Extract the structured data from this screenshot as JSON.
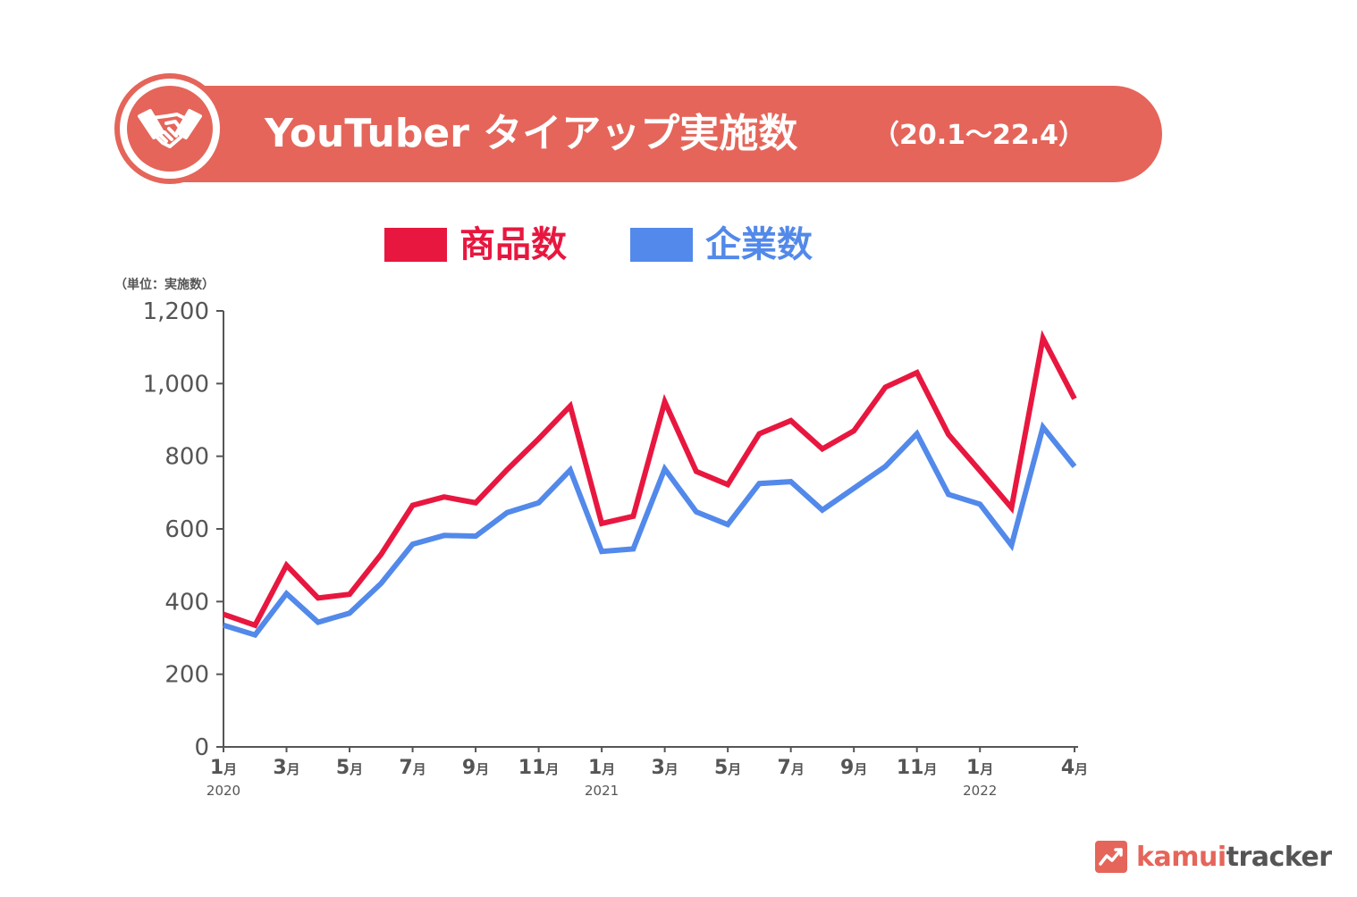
{
  "header": {
    "title": "YouTuber タイアップ実施数",
    "range": "（20.1～22.4）",
    "icon": "handshake-icon"
  },
  "legend": [
    {
      "label": "商品数",
      "color": "#e8173f"
    },
    {
      "label": "企業数",
      "color": "#5289ea"
    }
  ],
  "unit_label": "（単位：実施数）",
  "brand": {
    "prefix": "kamui",
    "suffix": "tracker",
    "prefix_color": "#e5655a",
    "suffix_color": "#555555",
    "icon": "trend-chart-icon"
  },
  "chart_data": {
    "type": "line",
    "title": "YouTuber タイアップ実施数",
    "xlabel": "",
    "ylabel": "（単位：実施数）",
    "ylim": [
      0,
      1200
    ],
    "yticks": [
      "0",
      "200",
      "400",
      "600",
      "800",
      "1,000",
      "1,200"
    ],
    "ytick_values": [
      0,
      200,
      400,
      600,
      800,
      1000,
      1200
    ],
    "x": [
      "2020-01",
      "2020-02",
      "2020-03",
      "2020-04",
      "2020-05",
      "2020-06",
      "2020-07",
      "2020-08",
      "2020-09",
      "2020-10",
      "2020-11",
      "2020-12",
      "2021-01",
      "2021-02",
      "2021-03",
      "2021-04",
      "2021-05",
      "2021-06",
      "2021-07",
      "2021-08",
      "2021-09",
      "2021-10",
      "2021-11",
      "2021-12",
      "2022-01",
      "2022-02",
      "2022-03",
      "2022-04"
    ],
    "xtick_labels": [
      {
        "index": 0,
        "month": "1",
        "year": "2020"
      },
      {
        "index": 2,
        "month": "3",
        "year": ""
      },
      {
        "index": 4,
        "month": "5",
        "year": ""
      },
      {
        "index": 6,
        "month": "7",
        "year": ""
      },
      {
        "index": 8,
        "month": "9",
        "year": ""
      },
      {
        "index": 10,
        "month": "11",
        "year": ""
      },
      {
        "index": 12,
        "month": "1",
        "year": "2021"
      },
      {
        "index": 14,
        "month": "3",
        "year": ""
      },
      {
        "index": 16,
        "month": "5",
        "year": ""
      },
      {
        "index": 18,
        "month": "7",
        "year": ""
      },
      {
        "index": 20,
        "month": "9",
        "year": ""
      },
      {
        "index": 22,
        "month": "11",
        "year": ""
      },
      {
        "index": 24,
        "month": "1",
        "year": "2022"
      },
      {
        "index": 27,
        "month": "4",
        "year": ""
      }
    ],
    "month_suffix": "月",
    "series": [
      {
        "name": "商品数",
        "color": "#e8173f",
        "values": [
          365,
          335,
          500,
          410,
          420,
          530,
          665,
          688,
          672,
          763,
          848,
          938,
          615,
          635,
          950,
          758,
          722,
          862,
          898,
          820,
          870,
          990,
          1030,
          860,
          760,
          658,
          1125,
          958
        ]
      },
      {
        "name": "企業数",
        "color": "#5289ea",
        "values": [
          335,
          308,
          422,
          343,
          368,
          450,
          558,
          582,
          580,
          645,
          672,
          762,
          538,
          545,
          765,
          647,
          612,
          725,
          730,
          652,
          712,
          772,
          862,
          695,
          668,
          555,
          880,
          772
        ]
      }
    ],
    "grid": false,
    "legend_position": "top"
  }
}
